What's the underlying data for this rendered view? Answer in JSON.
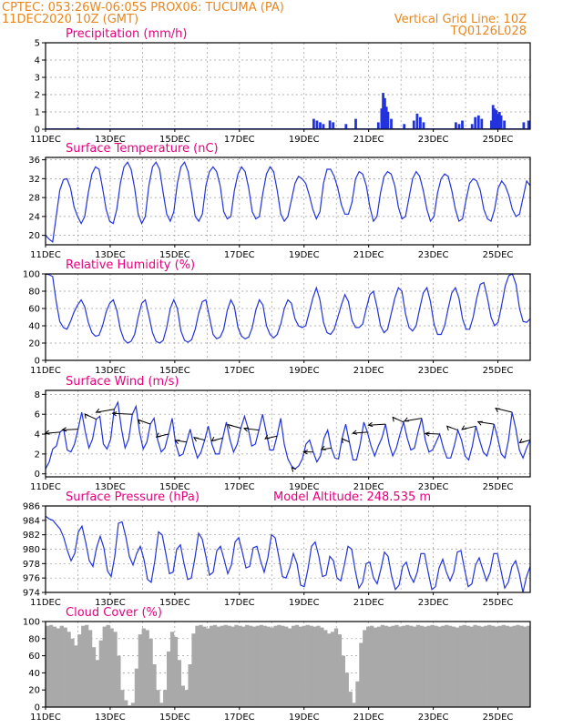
{
  "header": {
    "line1_left": "CPTEC:  053:26W-06:05S  PROX06: TUCUMA (PA)",
    "line2_left": "11DEC2020 10Z (GMT)",
    "line2_right": "Vertical Grid Line: 10Z",
    "line3_right": "TQ0126L028"
  },
  "colors": {
    "header": "#e8871e",
    "panel_title": "#e6007e",
    "series": "#2233dd",
    "cloud_fill": "#a9a9a9",
    "grid": "#9a9a9a"
  },
  "x_axis": {
    "start": "11DEC2020 10Z",
    "days": 15,
    "tick_labels": [
      "11DEC",
      "13DEC",
      "15DEC",
      "17DEC",
      "19DEC",
      "21DEC",
      "23DEC",
      "25DEC"
    ]
  },
  "chart_data": [
    {
      "id": "precip",
      "type": "bar",
      "title": "Precipitation (mm/h)",
      "ylim": [
        0,
        5
      ],
      "yticks": [
        0,
        1,
        2,
        3,
        4,
        5
      ],
      "x_unit": "days since 11DEC 10Z",
      "points": [
        [
          1.0,
          0.1
        ],
        [
          8.3,
          0.6
        ],
        [
          8.4,
          0.5
        ],
        [
          8.5,
          0.4
        ],
        [
          8.6,
          0.3
        ],
        [
          8.8,
          0.5
        ],
        [
          8.9,
          0.4
        ],
        [
          9.3,
          0.3
        ],
        [
          9.6,
          0.6
        ],
        [
          10.3,
          0.4
        ],
        [
          10.4,
          1.2
        ],
        [
          10.45,
          2.1
        ],
        [
          10.5,
          1.8
        ],
        [
          10.55,
          1.3
        ],
        [
          10.6,
          1.0
        ],
        [
          10.7,
          0.6
        ],
        [
          11.1,
          0.3
        ],
        [
          11.4,
          0.5
        ],
        [
          11.5,
          0.9
        ],
        [
          11.6,
          0.7
        ],
        [
          11.7,
          0.4
        ],
        [
          12.7,
          0.4
        ],
        [
          12.8,
          0.3
        ],
        [
          12.9,
          0.5
        ],
        [
          13.2,
          0.3
        ],
        [
          13.3,
          0.7
        ],
        [
          13.4,
          0.8
        ],
        [
          13.5,
          0.6
        ],
        [
          13.8,
          0.5
        ],
        [
          13.85,
          1.4
        ],
        [
          13.9,
          1.2
        ],
        [
          13.95,
          1.1
        ],
        [
          14.0,
          0.9
        ],
        [
          14.05,
          1.0
        ],
        [
          14.1,
          0.8
        ],
        [
          14.2,
          0.5
        ],
        [
          14.8,
          0.4
        ],
        [
          14.95,
          0.5
        ]
      ]
    },
    {
      "id": "temp",
      "type": "line",
      "title": "Surface Temperature (nC)",
      "ylim": [
        18,
        36.5
      ],
      "yticks": [
        20,
        24,
        28,
        32,
        36
      ],
      "values": [
        20,
        19.2,
        18.6,
        24,
        29.5,
        31.8,
        32,
        30,
        26,
        24,
        22.5,
        24,
        29,
        33,
        34.5,
        34,
        30,
        25.5,
        23,
        22.5,
        25.5,
        31,
        34.5,
        35.5,
        34,
        30,
        24.5,
        22.5,
        24,
        30.5,
        34.5,
        35.5,
        34,
        29,
        24.5,
        23,
        25,
        31,
        34.5,
        35.5,
        33.5,
        29,
        24,
        23,
        24.5,
        30.5,
        33.5,
        34.5,
        33.5,
        30.5,
        25,
        23.5,
        24,
        29.5,
        33,
        34.5,
        33.5,
        30,
        25,
        23.5,
        24,
        29,
        33,
        34.5,
        33.5,
        29.5,
        24.5,
        23,
        24,
        27.5,
        31,
        32.5,
        32,
        31,
        28.5,
        25.5,
        23.5,
        25,
        31,
        34,
        34,
        32.5,
        30,
        26.5,
        24.5,
        24.5,
        27,
        32,
        33.5,
        33,
        30.5,
        26,
        23,
        24,
        29,
        32.5,
        33.5,
        33,
        30.5,
        26,
        23.5,
        24,
        28,
        32,
        33.5,
        32.5,
        29.5,
        25.5,
        23,
        24,
        29,
        32,
        33,
        32.5,
        29.5,
        25.5,
        23,
        23.5,
        27.5,
        31,
        32,
        31.5,
        29.5,
        25.5,
        23.5,
        23,
        25.5,
        30,
        31.5,
        30.5,
        28.5,
        25.5,
        24,
        24.5,
        28,
        31.5,
        30.5
      ]
    },
    {
      "id": "rh",
      "type": "line",
      "title": "Relative Humidity (%)",
      "ylim": [
        0,
        100
      ],
      "yticks": [
        0,
        20,
        40,
        60,
        80,
        100
      ],
      "values": [
        100,
        99,
        97,
        68,
        45,
        38,
        36,
        45,
        56,
        64,
        70,
        62,
        44,
        32,
        28,
        29,
        40,
        56,
        66,
        70,
        58,
        36,
        24,
        20,
        22,
        30,
        50,
        66,
        70,
        52,
        32,
        22,
        20,
        23,
        38,
        60,
        70,
        60,
        34,
        23,
        21,
        24,
        36,
        55,
        68,
        70,
        50,
        30,
        25,
        27,
        36,
        58,
        70,
        62,
        38,
        28,
        25,
        27,
        38,
        58,
        70,
        64,
        40,
        30,
        26,
        30,
        42,
        60,
        70,
        66,
        48,
        40,
        38,
        40,
        56,
        72,
        84,
        70,
        44,
        32,
        30,
        36,
        50,
        64,
        76,
        68,
        46,
        38,
        38,
        42,
        60,
        76,
        80,
        62,
        40,
        32,
        36,
        54,
        72,
        84,
        80,
        54,
        38,
        34,
        40,
        60,
        78,
        84,
        68,
        42,
        30,
        30,
        40,
        60,
        78,
        84,
        72,
        48,
        36,
        36,
        50,
        72,
        88,
        90,
        72,
        50,
        40,
        44,
        64,
        86,
        98,
        100,
        88,
        60,
        45,
        44,
        48
      ]
    },
    {
      "id": "wind",
      "type": "line",
      "title": "Surface Wind (m/s)",
      "ylim": [
        -0.3,
        8.4
      ],
      "yticks": [
        0,
        2,
        4,
        6,
        8
      ],
      "values": [
        0.5,
        1.2,
        2.5,
        2.8,
        4.2,
        4.5,
        2.4,
        2.2,
        3.0,
        4.5,
        6.2,
        4.2,
        2.6,
        3.5,
        5.5,
        5.8,
        3.0,
        2.5,
        3.5,
        6.5,
        7.2,
        4.5,
        2.6,
        3.5,
        6.0,
        6.8,
        4.2,
        2.5,
        3.2,
        5.0,
        5.6,
        3.4,
        2.2,
        2.6,
        4.0,
        5.6,
        3.0,
        1.8,
        2.0,
        3.2,
        4.5,
        2.8,
        1.6,
        2.2,
        3.4,
        4.8,
        3.0,
        2.0,
        2.0,
        3.6,
        5.2,
        3.4,
        2.2,
        3.0,
        4.6,
        5.8,
        4.6,
        2.8,
        3.0,
        4.4,
        6.0,
        4.2,
        2.4,
        2.4,
        3.8,
        5.6,
        3.0,
        1.5,
        0.8,
        0.5,
        0.8,
        1.5,
        3.0,
        3.4,
        2.2,
        1.2,
        1.8,
        3.6,
        4.4,
        2.6,
        1.6,
        1.5,
        3.6,
        5.0,
        3.2,
        1.4,
        1.4,
        3.0,
        5.2,
        4.2,
        2.8,
        1.8,
        2.8,
        3.6,
        5.0,
        3.0,
        1.8,
        2.6,
        4.0,
        5.2,
        3.6,
        2.4,
        2.6,
        4.2,
        5.6,
        3.4,
        2.2,
        2.4,
        3.2,
        4.0,
        2.6,
        1.6,
        1.6,
        2.8,
        4.4,
        3.4,
        1.8,
        1.4,
        2.8,
        4.8,
        3.4,
        2.2,
        1.8,
        3.0,
        5.0,
        3.6,
        2.0,
        1.6,
        3.4,
        6.2,
        4.6,
        2.4,
        1.6,
        2.6,
        3.4
      ]
    },
    {
      "id": "pressure",
      "type": "line",
      "title": "Surface Pressure (hPa)",
      "subtitle": "Model Altitude: 248.535 m",
      "ylim": [
        974,
        986
      ],
      "yticks": [
        974,
        976,
        978,
        980,
        982,
        984,
        986
      ],
      "values": [
        984.6,
        984.2,
        984.0,
        983.4,
        982.8,
        981.6,
        979.8,
        978.4,
        979.4,
        982.4,
        983.2,
        981.0,
        978.4,
        977.6,
        980.2,
        981.8,
        980.2,
        977.0,
        976.2,
        979.0,
        983.6,
        983.8,
        981.8,
        979.0,
        977.8,
        979.4,
        980.4,
        978.6,
        975.8,
        975.4,
        978.4,
        982.4,
        982.0,
        979.4,
        976.6,
        976.8,
        980.0,
        980.6,
        978.0,
        975.8,
        976.0,
        978.8,
        982.2,
        981.4,
        979.0,
        976.4,
        976.8,
        979.8,
        980.4,
        978.6,
        976.6,
        977.8,
        981.0,
        981.6,
        979.6,
        977.4,
        977.6,
        980.2,
        980.4,
        978.4,
        976.8,
        978.8,
        982.0,
        981.6,
        979.0,
        976.2,
        976.0,
        977.4,
        979.4,
        978.0,
        975.0,
        974.8,
        977.2,
        980.4,
        981.0,
        979.0,
        976.2,
        976.4,
        979.0,
        978.4,
        976.0,
        975.6,
        977.8,
        980.4,
        980.0,
        977.0,
        974.6,
        975.4,
        978.0,
        978.2,
        976.0,
        975.2,
        977.2,
        979.6,
        979.0,
        976.2,
        974.4,
        975.0,
        977.6,
        978.2,
        976.4,
        975.4,
        976.8,
        979.4,
        979.4,
        976.8,
        974.4,
        974.8,
        977.4,
        978.6,
        976.8,
        975.6,
        976.8,
        979.6,
        979.8,
        977.2,
        974.8,
        975.2,
        977.8,
        978.8,
        977.2,
        975.6,
        976.8,
        979.4,
        979.4,
        977.0,
        974.6,
        975.4,
        977.6,
        978.4,
        976.6,
        974.0,
        976.2,
        977.6
      ]
    },
    {
      "id": "cloud",
      "type": "area",
      "title": "Cloud Cover (%)",
      "ylim": [
        0,
        100
      ],
      "yticks": [
        0,
        20,
        40,
        60,
        80,
        100
      ],
      "values": [
        95,
        96,
        94,
        92,
        95,
        93,
        88,
        80,
        72,
        85,
        95,
        96,
        90,
        70,
        55,
        78,
        94,
        96,
        92,
        88,
        60,
        20,
        8,
        2,
        5,
        45,
        85,
        92,
        90,
        80,
        50,
        20,
        5,
        20,
        65,
        88,
        82,
        55,
        25,
        20,
        50,
        86,
        95,
        96,
        94,
        92,
        95,
        96,
        94,
        95,
        96,
        95,
        94,
        96,
        95,
        94,
        96,
        95,
        94,
        95,
        96,
        95,
        94,
        93,
        95,
        96,
        95,
        94,
        92,
        95,
        96,
        94,
        95,
        96,
        95,
        94,
        95,
        93,
        90,
        86,
        88,
        92,
        85,
        60,
        40,
        18,
        5,
        30,
        75,
        90,
        94,
        95,
        93,
        94,
        96,
        95,
        94,
        95,
        96,
        94,
        95,
        96,
        95,
        94,
        96,
        95,
        94,
        95,
        96,
        95,
        94,
        95,
        96,
        95,
        94,
        93,
        95,
        96,
        95,
        94,
        96,
        95,
        94,
        95,
        96,
        95,
        94,
        95,
        96,
        95,
        94,
        95,
        96,
        95,
        94,
        95
      ]
    }
  ]
}
